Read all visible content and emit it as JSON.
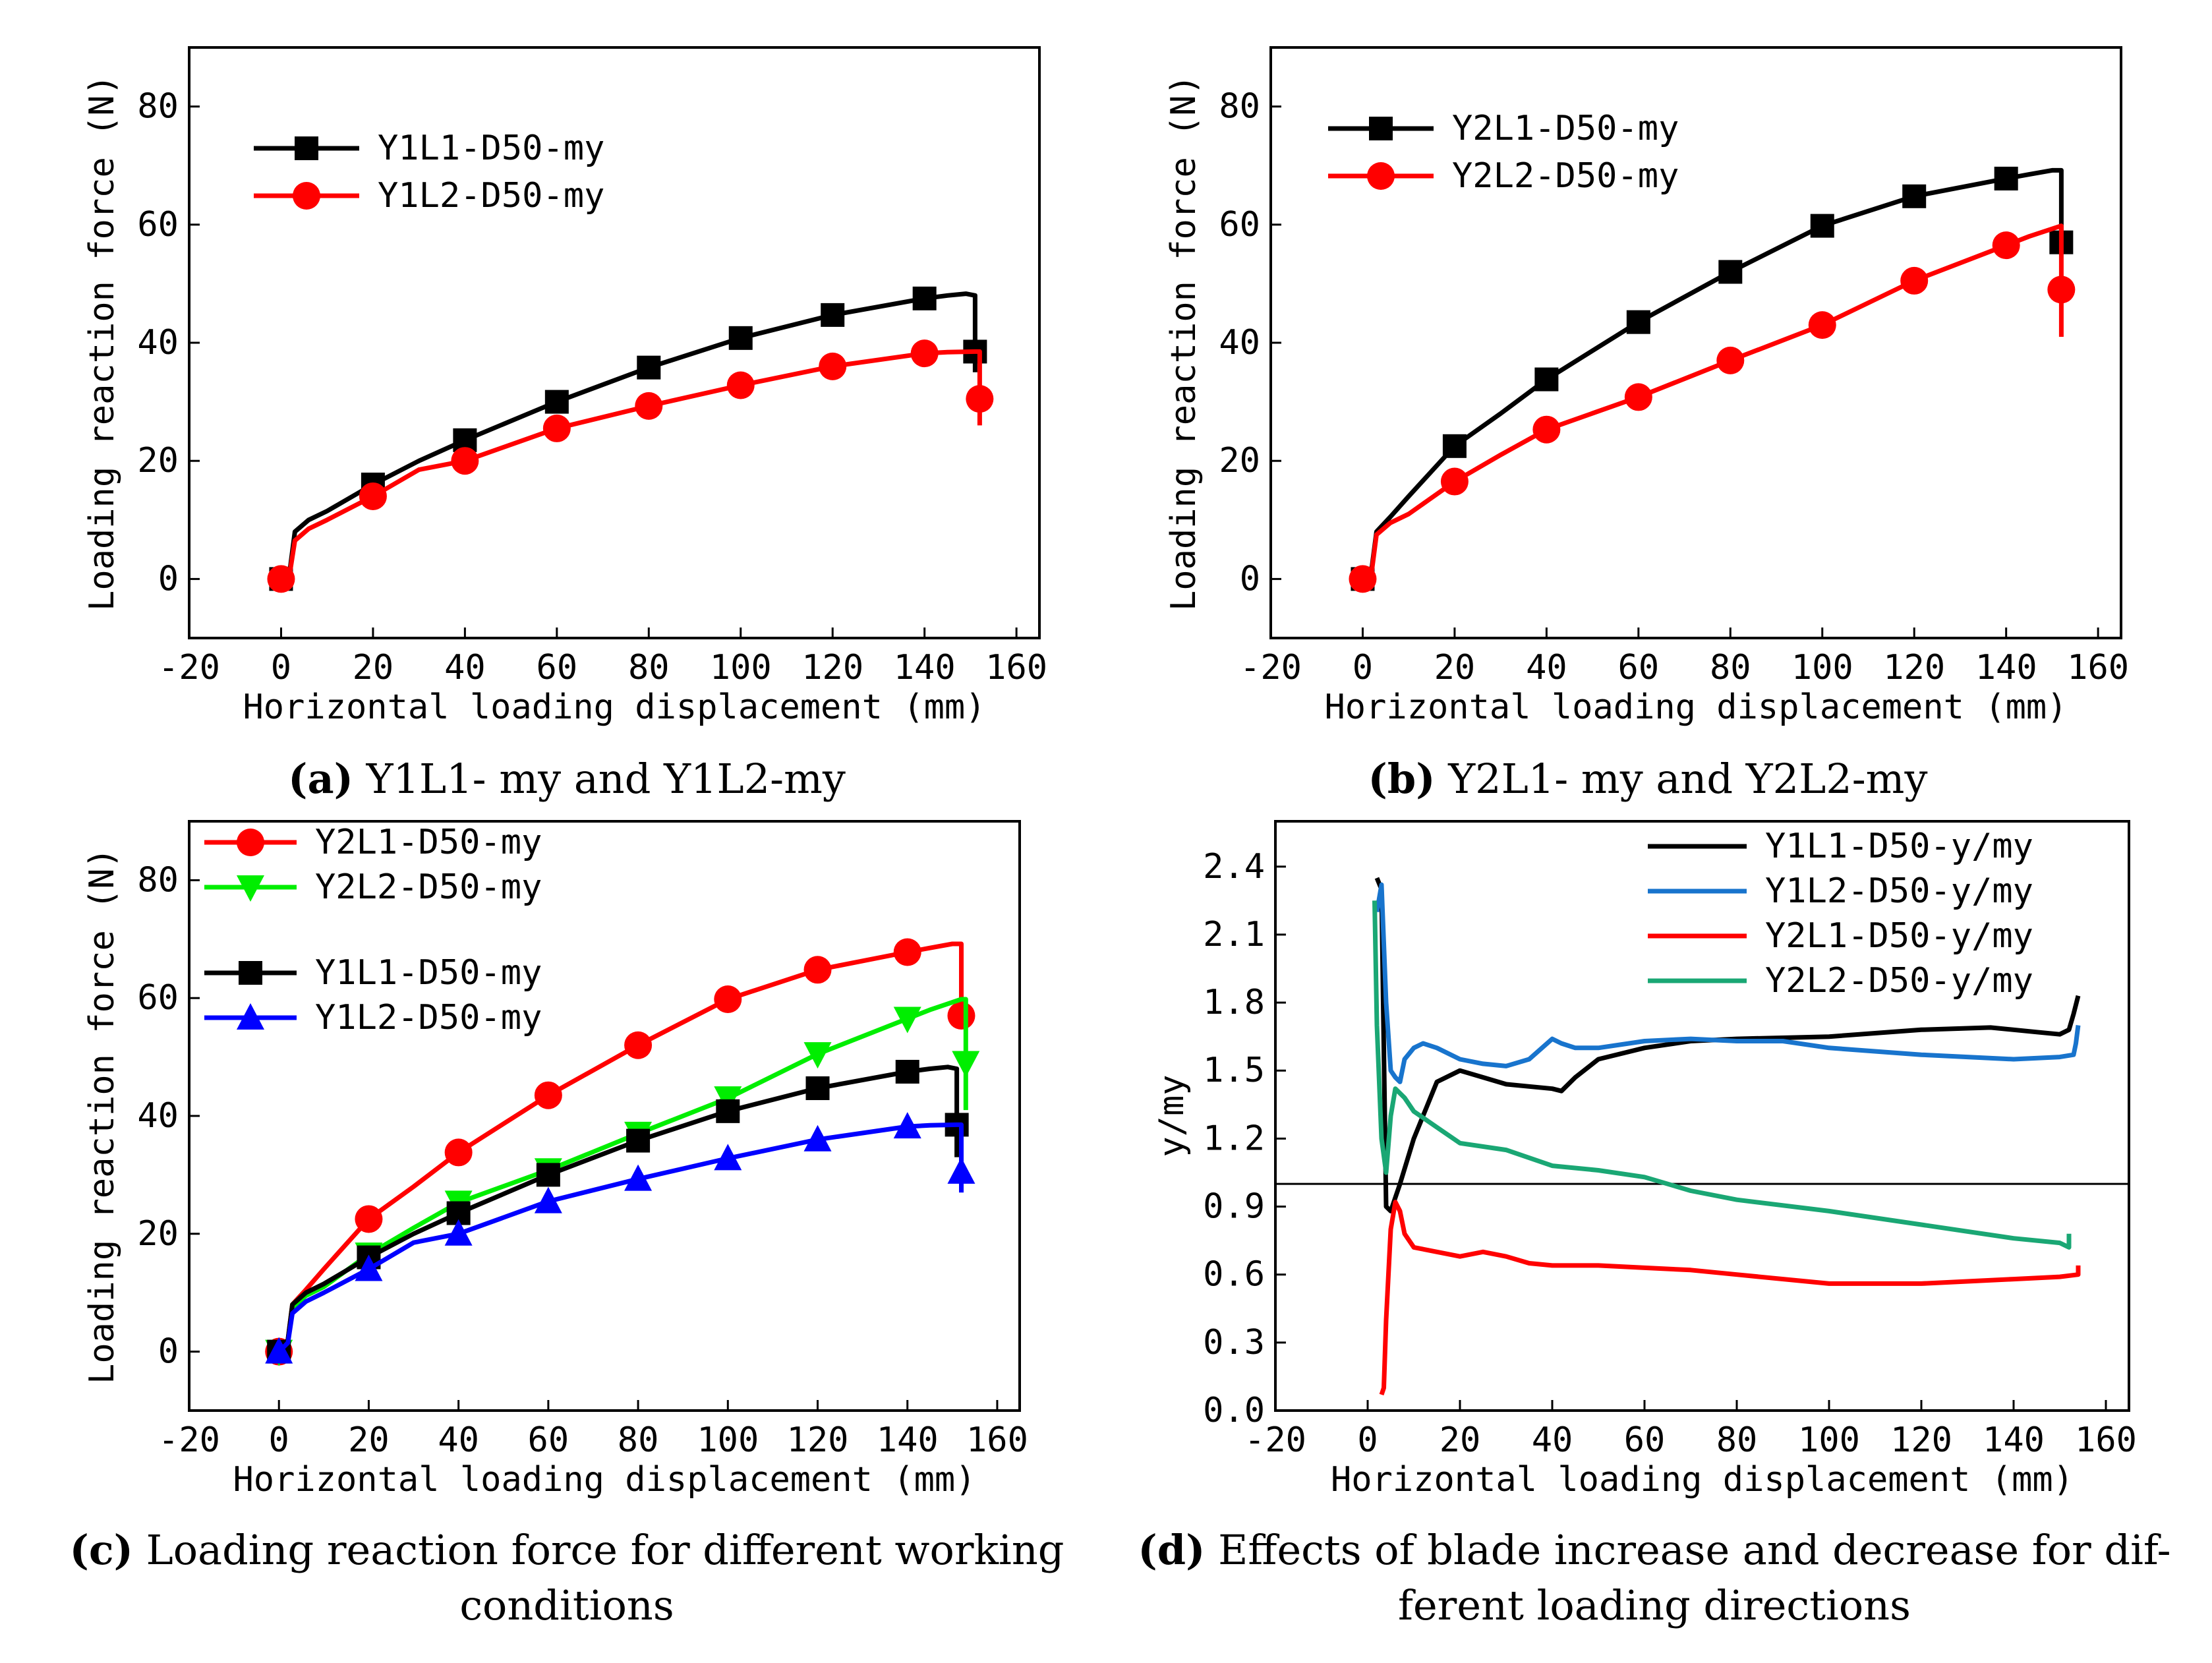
{
  "chart_data": [
    {
      "id": "a",
      "type": "line",
      "xlabel": "Horizontal loading displacement (mm)",
      "ylabel": "Loading reaction force (N)",
      "xlim": [
        -20,
        165
      ],
      "ylim": [
        -10,
        90
      ],
      "xticks": [
        -20,
        0,
        20,
        40,
        60,
        80,
        100,
        120,
        140,
        160
      ],
      "yticks": [
        0,
        20,
        40,
        60,
        80
      ],
      "legend_position": "top-left",
      "series": [
        {
          "name": "Y1L1-D50-my",
          "color": "#000000",
          "marker": "square",
          "x": [
            0,
            2,
            3,
            6,
            10,
            20,
            30,
            40,
            60,
            80,
            100,
            120,
            140,
            145,
            149,
            151,
            151,
            151
          ],
          "y": [
            0,
            2,
            8,
            10,
            11.5,
            16,
            20,
            23.5,
            30,
            35.8,
            40.8,
            44.7,
            47.5,
            48,
            48.3,
            48,
            38.5,
            35
          ],
          "marker_x": [
            0,
            20,
            40,
            60,
            80,
            100,
            120,
            140,
            151
          ],
          "marker_y": [
            0,
            16,
            23.5,
            30,
            35.8,
            40.8,
            44.7,
            47.5,
            38.5
          ]
        },
        {
          "name": "Y1L2-D50-my",
          "color": "#ff0000",
          "marker": "circle",
          "x": [
            0,
            2,
            3,
            6,
            10,
            20,
            30,
            40,
            60,
            80,
            100,
            120,
            140,
            145,
            151,
            152,
            152,
            152
          ],
          "y": [
            0,
            1.5,
            6.5,
            8.5,
            10,
            14,
            18.5,
            20,
            25.5,
            29.3,
            32.8,
            36,
            38.2,
            38.4,
            38.5,
            38.5,
            30.5,
            26
          ],
          "marker_x": [
            0,
            20,
            40,
            60,
            80,
            100,
            120,
            140,
            152
          ],
          "marker_y": [
            0,
            14,
            20,
            25.5,
            29.3,
            32.8,
            36,
            38.2,
            30.5
          ]
        }
      ]
    },
    {
      "id": "b",
      "type": "line",
      "xlabel": "Horizontal loading displacement (mm)",
      "ylabel": "Loading reaction force (N)",
      "xlim": [
        -20,
        165
      ],
      "ylim": [
        -10,
        90
      ],
      "xticks": [
        -20,
        0,
        20,
        40,
        60,
        80,
        100,
        120,
        140,
        160
      ],
      "yticks": [
        0,
        20,
        40,
        60,
        80
      ],
      "legend_position": "top-left",
      "series": [
        {
          "name": "Y2L1-D50-my",
          "color": "#000000",
          "marker": "square",
          "x": [
            0,
            2,
            3,
            6,
            10,
            20,
            30,
            40,
            60,
            80,
            100,
            120,
            140,
            145,
            150,
            152,
            152,
            152
          ],
          "y": [
            0,
            2,
            8,
            10.5,
            14,
            22.5,
            28,
            33.8,
            43.5,
            52,
            59.8,
            64.8,
            67.8,
            68.5,
            69.2,
            69.2,
            57,
            55
          ],
          "marker_x": [
            0,
            20,
            40,
            60,
            80,
            100,
            120,
            140,
            152
          ],
          "marker_y": [
            0,
            22.5,
            33.8,
            43.5,
            52,
            59.8,
            64.8,
            67.8,
            57
          ]
        },
        {
          "name": "Y2L2-D50-my",
          "color": "#ff0000",
          "marker": "circle",
          "x": [
            0,
            2,
            3,
            6,
            10,
            20,
            30,
            40,
            60,
            80,
            100,
            120,
            140,
            145,
            152,
            152,
            152
          ],
          "y": [
            0,
            1.5,
            7.5,
            9.5,
            11,
            16.5,
            21,
            25.3,
            30.8,
            37,
            43,
            50.5,
            56.5,
            58,
            59.8,
            49,
            41
          ],
          "marker_x": [
            0,
            20,
            40,
            60,
            80,
            100,
            120,
            140,
            152
          ],
          "marker_y": [
            0,
            16.5,
            25.3,
            30.8,
            37,
            43,
            50.5,
            56.5,
            49
          ]
        }
      ]
    },
    {
      "id": "c",
      "type": "line",
      "xlabel": "Horizontal loading displacement (mm)",
      "ylabel": "Loading reaction force (N)",
      "xlim": [
        -20,
        165
      ],
      "ylim": [
        -10,
        90
      ],
      "xticks": [
        -20,
        0,
        20,
        40,
        60,
        80,
        100,
        120,
        140,
        160
      ],
      "yticks": [
        0,
        20,
        40,
        60,
        80
      ],
      "legend_position": "top-left",
      "series": [
        {
          "name": "Y2L1-D50-my",
          "color": "#ff0000",
          "marker": "circle",
          "x": [
            0,
            2,
            3,
            6,
            10,
            20,
            30,
            40,
            60,
            80,
            100,
            120,
            140,
            145,
            150,
            152,
            152
          ],
          "y": [
            0,
            2,
            8,
            10.5,
            14,
            22.5,
            28,
            33.8,
            43.5,
            52,
            59.8,
            64.8,
            67.8,
            68.5,
            69.2,
            69.2,
            57
          ],
          "marker_x": [
            0,
            20,
            40,
            60,
            80,
            100,
            120,
            140,
            152
          ],
          "marker_y": [
            0,
            22.5,
            33.8,
            43.5,
            52,
            59.8,
            64.8,
            67.8,
            57
          ]
        },
        {
          "name": "Y2L2-D50-my",
          "color": "#00ee00",
          "marker": "triangle-down",
          "x": [
            0,
            2,
            3,
            6,
            10,
            20,
            30,
            40,
            60,
            80,
            100,
            120,
            140,
            145,
            152,
            153,
            153
          ],
          "y": [
            0,
            1.5,
            7.5,
            9.5,
            11,
            16.5,
            21,
            25.3,
            30.8,
            37,
            43,
            50.5,
            56.5,
            58,
            59.8,
            59.8,
            41
          ],
          "marker_x": [
            0,
            20,
            40,
            60,
            80,
            100,
            120,
            140,
            153
          ],
          "marker_y": [
            0,
            16.5,
            25.3,
            30.8,
            37,
            43,
            50.5,
            56.5,
            49
          ]
        },
        {
          "name": "Y1L1-D50-my",
          "color": "#000000",
          "marker": "square",
          "x": [
            0,
            2,
            3,
            6,
            10,
            20,
            30,
            40,
            60,
            80,
            100,
            120,
            140,
            145,
            149,
            151,
            151
          ],
          "y": [
            0,
            2,
            8,
            10,
            11.5,
            16,
            20,
            23.5,
            30,
            35.8,
            40.8,
            44.7,
            47.5,
            48,
            48.3,
            48,
            33
          ],
          "marker_x": [
            0,
            20,
            40,
            60,
            80,
            100,
            120,
            140,
            151
          ],
          "marker_y": [
            0,
            16,
            23.5,
            30,
            35.8,
            40.8,
            44.7,
            47.5,
            38.5
          ]
        },
        {
          "name": "Y1L2-D50-my",
          "color": "#0000ff",
          "marker": "triangle-up",
          "x": [
            0,
            2,
            3,
            6,
            10,
            20,
            30,
            40,
            60,
            80,
            100,
            120,
            140,
            145,
            151,
            152,
            152
          ],
          "y": [
            0,
            1.5,
            6.5,
            8.5,
            10,
            14,
            18.5,
            20,
            25.5,
            29.3,
            32.8,
            36,
            38.2,
            38.4,
            38.5,
            38.5,
            27
          ],
          "marker_x": [
            0,
            20,
            40,
            60,
            80,
            100,
            120,
            140,
            152
          ],
          "marker_y": [
            0,
            14,
            20,
            25.5,
            29.3,
            32.8,
            36,
            38.2,
            30.5
          ]
        }
      ]
    },
    {
      "id": "d",
      "type": "line",
      "xlabel": "Horizontal loading displacement (mm)",
      "ylabel": "y/my",
      "xlim": [
        -20,
        165
      ],
      "ylim": [
        0,
        2.6
      ],
      "xticks": [
        -20,
        0,
        20,
        40,
        60,
        80,
        100,
        120,
        140,
        160
      ],
      "yticks": [
        0.0,
        0.3,
        0.6,
        0.9,
        1.2,
        1.5,
        1.8,
        2.1,
        2.4
      ],
      "ytick_labels": [
        "0.0",
        "0.3",
        "0.6",
        "0.9",
        "1.2",
        "1.5",
        "1.8",
        "2.1",
        "2.4"
      ],
      "reference_line_y": 1.0,
      "legend_position": "top-right",
      "series": [
        {
          "name": "Y1L1-D50-y/my",
          "color": "#000000",
          "x": [
            2,
            3,
            3.5,
            4,
            5,
            7,
            10,
            15,
            20,
            25,
            30,
            35,
            40,
            42,
            45,
            50,
            60,
            70,
            80,
            100,
            120,
            135,
            145,
            150,
            152,
            153,
            154
          ],
          "y": [
            2.35,
            2.3,
            1.6,
            0.9,
            0.88,
            1.0,
            1.2,
            1.45,
            1.5,
            1.47,
            1.44,
            1.43,
            1.42,
            1.41,
            1.47,
            1.55,
            1.6,
            1.63,
            1.64,
            1.65,
            1.68,
            1.69,
            1.67,
            1.66,
            1.68,
            1.75,
            1.83
          ]
        },
        {
          "name": "Y1L2-D50-y/my",
          "color": "#1874cd",
          "x": [
            2,
            3,
            4,
            5,
            6,
            7,
            8,
            10,
            12,
            15,
            20,
            25,
            30,
            35,
            40,
            42,
            45,
            50,
            60,
            70,
            80,
            90,
            100,
            120,
            140,
            150,
            153,
            153.5,
            154
          ],
          "y": [
            2.2,
            2.32,
            1.8,
            1.5,
            1.47,
            1.45,
            1.55,
            1.6,
            1.62,
            1.6,
            1.55,
            1.53,
            1.52,
            1.55,
            1.64,
            1.62,
            1.6,
            1.6,
            1.63,
            1.64,
            1.63,
            1.63,
            1.6,
            1.57,
            1.55,
            1.56,
            1.57,
            1.62,
            1.7
          ]
        },
        {
          "name": "Y2L1-D50-y/my",
          "color": "#ff0000",
          "x": [
            3,
            3.5,
            4,
            5,
            6,
            7,
            8,
            10,
            15,
            20,
            25,
            30,
            35,
            40,
            50,
            60,
            70,
            80,
            100,
            120,
            140,
            150,
            154,
            154
          ],
          "y": [
            0.07,
            0.1,
            0.4,
            0.8,
            0.92,
            0.88,
            0.78,
            0.72,
            0.7,
            0.68,
            0.7,
            0.68,
            0.65,
            0.64,
            0.64,
            0.63,
            0.62,
            0.6,
            0.56,
            0.56,
            0.58,
            0.59,
            0.6,
            0.64
          ]
        },
        {
          "name": "Y2L2-D50-y/my",
          "color": "#1aa774",
          "x": [
            1.5,
            2,
            3,
            4,
            5,
            6,
            8,
            10,
            15,
            20,
            30,
            40,
            50,
            60,
            70,
            80,
            100,
            120,
            140,
            150,
            152,
            152
          ],
          "y": [
            2.25,
            1.7,
            1.2,
            1.05,
            1.3,
            1.42,
            1.38,
            1.32,
            1.25,
            1.18,
            1.15,
            1.08,
            1.06,
            1.03,
            0.97,
            0.93,
            0.88,
            0.82,
            0.76,
            0.74,
            0.72,
            0.78
          ]
        }
      ]
    }
  ],
  "captions": {
    "a": {
      "label": "(a)",
      "text": " Y1L1- my and Y1L2-my"
    },
    "b": {
      "label": "(b)",
      "text": " Y2L1- my and Y2L2-my"
    },
    "c": {
      "label": "(c)",
      "text": " Loading reaction force for different working",
      "line2": "conditions"
    },
    "d": {
      "label": "(d)",
      "text": " Effects of blade increase and decrease for dif-",
      "line2": "ferent loading directions"
    }
  }
}
